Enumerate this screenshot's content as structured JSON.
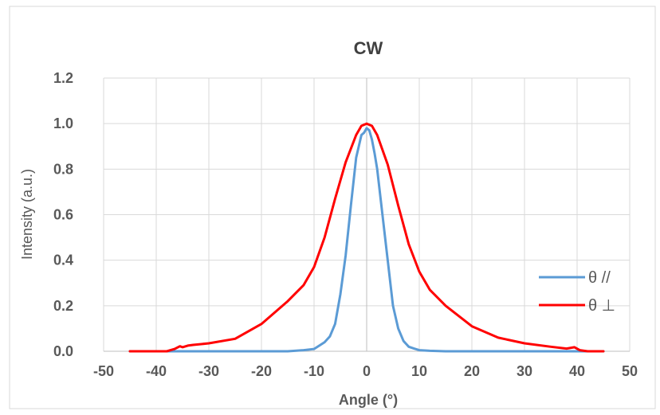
{
  "chart_data": {
    "type": "line",
    "title": "CW",
    "xlabel": "Angle (°)",
    "ylabel": "Intensity (a.u.)",
    "xlim": [
      -50,
      50
    ],
    "ylim": [
      0,
      1.2
    ],
    "xticks": [
      -50,
      -40,
      -30,
      -20,
      -10,
      0,
      10,
      20,
      30,
      40,
      50
    ],
    "yticks": [
      "0.0",
      "0.2",
      "0.4",
      "0.6",
      "0.8",
      "1.0",
      "1.2"
    ],
    "grid": true,
    "legend_position": "right",
    "series": [
      {
        "name": "θ //",
        "color": "#5b9bd5",
        "x": [
          -45,
          -15,
          -12,
          -10,
          -9,
          -8,
          -7,
          -6,
          -5,
          -4,
          -3,
          -2,
          -1.5,
          -1,
          -0.5,
          0,
          0.5,
          1,
          1.5,
          2,
          3,
          4,
          5,
          6,
          7,
          8,
          9,
          10,
          12,
          15,
          45
        ],
        "y": [
          0.0,
          0.0,
          0.005,
          0.01,
          0.025,
          0.04,
          0.065,
          0.12,
          0.25,
          0.42,
          0.64,
          0.85,
          0.9,
          0.95,
          0.96,
          0.98,
          0.97,
          0.93,
          0.87,
          0.8,
          0.6,
          0.4,
          0.2,
          0.1,
          0.045,
          0.02,
          0.012,
          0.005,
          0.002,
          0.0,
          0.0
        ]
      },
      {
        "name": "θ ⊥",
        "color": "#ff0000",
        "x": [
          -45,
          -38,
          -36.5,
          -35.5,
          -35,
          -34,
          -33,
          -30,
          -25,
          -20,
          -15,
          -12,
          -10,
          -8,
          -6,
          -4,
          -2,
          -1,
          0,
          1,
          2,
          4,
          6,
          8,
          10,
          12,
          15,
          20,
          25,
          30,
          35,
          38,
          39.5,
          40.5,
          42,
          45
        ],
        "y": [
          0.0,
          0.0,
          0.01,
          0.022,
          0.018,
          0.025,
          0.028,
          0.035,
          0.055,
          0.12,
          0.22,
          0.29,
          0.37,
          0.5,
          0.67,
          0.83,
          0.95,
          0.99,
          1.0,
          0.99,
          0.95,
          0.82,
          0.64,
          0.47,
          0.35,
          0.27,
          0.2,
          0.11,
          0.06,
          0.035,
          0.02,
          0.012,
          0.018,
          0.005,
          0.0,
          0.0
        ]
      }
    ]
  }
}
